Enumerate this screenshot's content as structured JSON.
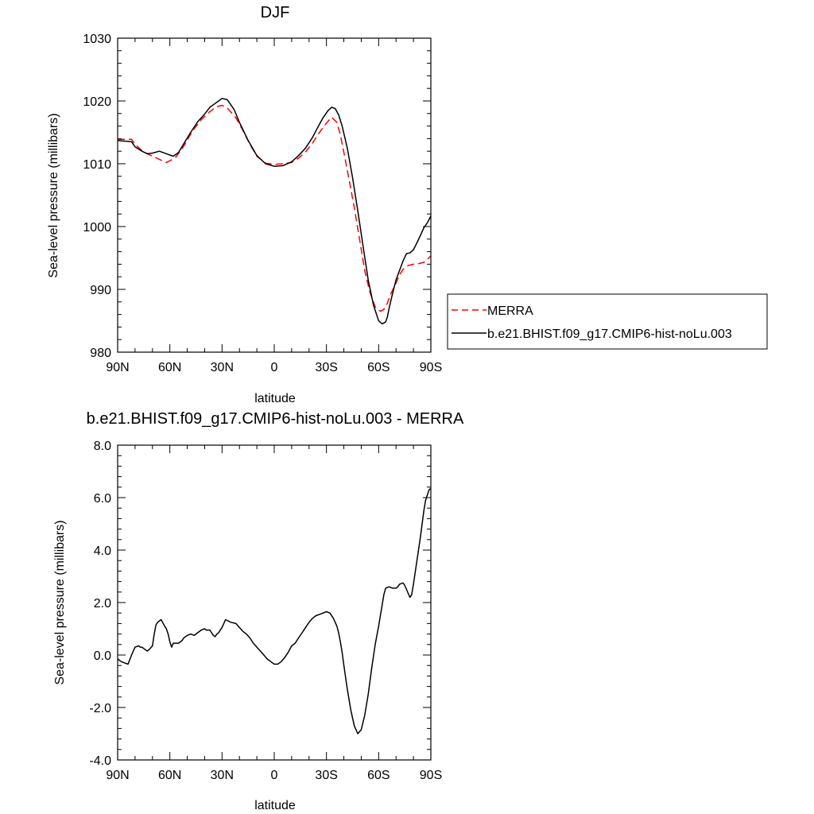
{
  "colors": {
    "merra": "#ff0000",
    "model": "#000000"
  },
  "chart_data": [
    {
      "type": "line",
      "title": "DJF",
      "xlabel": "latitude",
      "ylabel": "Sea-level pressure (millibars)",
      "xlim": [
        90,
        -90
      ],
      "ylim": [
        980,
        1030
      ],
      "grid": false,
      "legend_position": "right",
      "x_tick_values": [
        90,
        60,
        30,
        0,
        -30,
        -60,
        -90
      ],
      "x_tick_labels": [
        "90N",
        "60N",
        "30N",
        "0",
        "30S",
        "60S",
        "90S"
      ],
      "y_tick_values": [
        980,
        990,
        1000,
        1010,
        1020,
        1030
      ],
      "y_tick_labels": [
        "980",
        "990",
        "1000",
        "1010",
        "1020",
        "1030"
      ],
      "series": [
        {
          "name": "MERRA",
          "style": "dashed",
          "color": "#ff0000",
          "x": [
            90,
            82,
            80,
            76,
            73,
            70,
            66,
            62,
            57,
            52,
            47,
            42,
            37,
            33,
            30,
            27,
            22,
            18,
            14,
            10,
            5,
            0,
            -5,
            -10,
            -14,
            -18,
            -22,
            -26,
            -30,
            -33,
            -36,
            -38,
            -40,
            -43,
            -46,
            -49,
            -52,
            -55,
            -58,
            -61,
            -63,
            -65,
            -67,
            -70,
            -72,
            -74,
            -77,
            -80,
            -83,
            -86,
            -88,
            -90
          ],
          "y": [
            1013.9,
            1013.9,
            1013.1,
            1012.1,
            1011.6,
            1011.2,
            1010.7,
            1010.2,
            1010.9,
            1012.8,
            1015.2,
            1017.0,
            1018.3,
            1019.1,
            1019.3,
            1018.9,
            1017.3,
            1015.3,
            1013.1,
            1011.2,
            1010.1,
            1009.9,
            1010.0,
            1010.2,
            1010.9,
            1011.9,
            1013.3,
            1015.0,
            1016.5,
            1017.4,
            1016.6,
            1014.6,
            1011.8,
            1007.5,
            1003.0,
            998.0,
            993.0,
            989.5,
            987.2,
            986.5,
            986.8,
            987.8,
            989.3,
            991.0,
            992.3,
            993.2,
            993.8,
            994.0,
            994.1,
            994.3,
            994.8,
            995.3
          ]
        },
        {
          "name": "b.e21.BHIST.f09_g17.CMIP6-hist-noLu.003",
          "style": "solid",
          "color": "#000000",
          "x": [
            90,
            82,
            80,
            76,
            73,
            70,
            66,
            64,
            62,
            58,
            55,
            52,
            48,
            44,
            40,
            37,
            34,
            32,
            30,
            27,
            23,
            20,
            15,
            10,
            5,
            0,
            -5,
            -10,
            -14,
            -18,
            -22,
            -25,
            -28,
            -31,
            -33,
            -35,
            -37,
            -39,
            -42,
            -45,
            -48,
            -51,
            -54,
            -57,
            -60,
            -62,
            -64,
            -65,
            -66,
            -68,
            -70,
            -72,
            -74,
            -76,
            -78,
            -80,
            -82,
            -84,
            -86,
            -88,
            -90
          ],
          "y": [
            1013.7,
            1013.5,
            1012.7,
            1012.0,
            1011.6,
            1011.7,
            1012.0,
            1011.8,
            1011.6,
            1011.2,
            1011.8,
            1013.2,
            1015.0,
            1016.7,
            1017.9,
            1019.0,
            1019.6,
            1020.0,
            1020.4,
            1020.2,
            1018.6,
            1016.6,
            1013.7,
            1011.3,
            1010.0,
            1009.6,
            1009.7,
            1010.3,
            1011.3,
            1012.5,
            1014.2,
            1015.8,
            1017.3,
            1018.5,
            1019.0,
            1018.8,
            1017.8,
            1016.0,
            1012.5,
            1007.8,
            1002.5,
            997.0,
            991.5,
            987.5,
            985.0,
            984.5,
            984.8,
            985.6,
            987.0,
            989.3,
            991.5,
            993.0,
            994.5,
            995.7,
            995.8,
            996.3,
            997.4,
            998.6,
            999.8,
            1000.6,
            1001.7
          ]
        }
      ]
    },
    {
      "type": "line",
      "title": "b.e21.BHIST.f09_g17.CMIP6-hist-noLu.003 - MERRA",
      "xlabel": "latitude",
      "ylabel": "Sea-level pressure (millibars)",
      "xlim": [
        90,
        -90
      ],
      "ylim": [
        -4.0,
        8.0
      ],
      "grid": false,
      "x_tick_values": [
        90,
        60,
        30,
        0,
        -30,
        -60,
        -90
      ],
      "x_tick_labels": [
        "90N",
        "60N",
        "30N",
        "0",
        "30S",
        "60S",
        "90S"
      ],
      "y_tick_values": [
        -4.0,
        -2.0,
        0.0,
        2.0,
        4.0,
        6.0,
        8.0
      ],
      "y_tick_labels": [
        "-4.0",
        "-2.0",
        "0.0",
        "2.0",
        "4.0",
        "6.0",
        "8.0"
      ],
      "series": [
        {
          "style": "solid",
          "color": "#000000",
          "x": [
            90,
            88,
            86,
            84,
            82,
            80,
            78,
            77,
            76,
            75,
            73,
            72,
            70,
            69,
            68,
            67,
            66,
            65,
            63,
            62,
            61,
            60,
            59,
            58,
            55,
            53,
            52,
            50,
            48,
            46,
            44,
            42,
            40,
            39,
            37,
            36,
            35,
            34,
            33,
            32,
            31,
            30,
            28,
            25,
            22,
            20,
            18,
            16,
            14,
            12,
            10,
            8,
            6,
            4,
            2,
            0,
            -2,
            -4,
            -6,
            -8,
            -10,
            -12,
            -14,
            -16,
            -18,
            -20,
            -22,
            -24,
            -26,
            -28,
            -30,
            -32,
            -34,
            -36,
            -37,
            -38,
            -39,
            -40,
            -42,
            -44,
            -46,
            -48,
            -50,
            -52,
            -54,
            -56,
            -58,
            -60,
            -61,
            -62,
            -63,
            -64,
            -66,
            -68,
            -70,
            -71,
            -72,
            -74,
            -75,
            -76,
            -77,
            -78,
            -79,
            -80,
            -82,
            -84,
            -86,
            -87,
            -88,
            -89,
            -90
          ],
          "y": [
            -0.15,
            -0.25,
            -0.3,
            -0.35,
            0.0,
            0.3,
            0.35,
            0.3,
            0.3,
            0.25,
            0.15,
            0.2,
            0.35,
            0.8,
            1.15,
            1.25,
            1.3,
            1.35,
            1.1,
            1.0,
            0.8,
            0.5,
            0.3,
            0.45,
            0.45,
            0.55,
            0.65,
            0.75,
            0.8,
            0.75,
            0.85,
            0.95,
            1.0,
            0.95,
            0.95,
            0.85,
            0.75,
            0.7,
            0.8,
            0.85,
            0.95,
            1.05,
            1.35,
            1.25,
            1.2,
            1.05,
            0.9,
            0.8,
            0.65,
            0.45,
            0.3,
            0.15,
            0.0,
            -0.15,
            -0.25,
            -0.35,
            -0.35,
            -0.25,
            -0.1,
            0.1,
            0.35,
            0.45,
            0.65,
            0.85,
            1.05,
            1.25,
            1.4,
            1.5,
            1.55,
            1.6,
            1.65,
            1.6,
            1.4,
            1.1,
            0.85,
            0.5,
            0.1,
            -0.4,
            -1.3,
            -2.1,
            -2.7,
            -3.0,
            -2.85,
            -2.3,
            -1.5,
            -0.5,
            0.4,
            1.1,
            1.5,
            1.9,
            2.3,
            2.55,
            2.6,
            2.55,
            2.55,
            2.6,
            2.7,
            2.75,
            2.65,
            2.5,
            2.35,
            2.2,
            2.3,
            2.7,
            3.6,
            4.5,
            5.5,
            5.9,
            6.1,
            6.3,
            6.35
          ]
        }
      ]
    }
  ]
}
